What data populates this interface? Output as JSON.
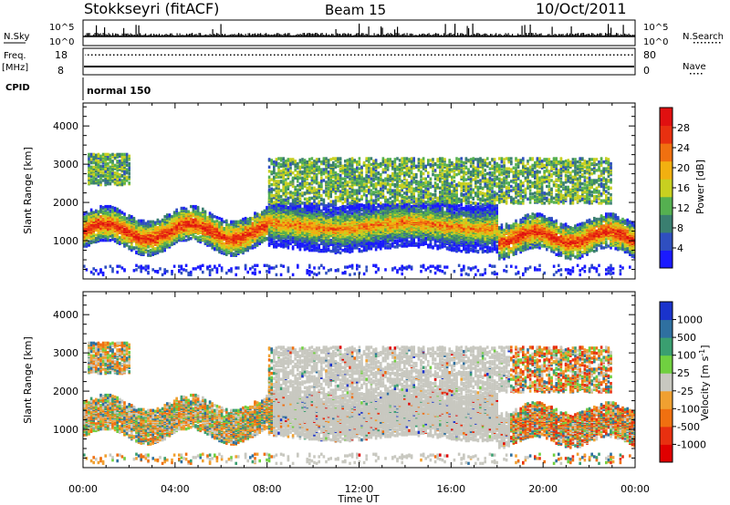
{
  "header": {
    "station": "Stokkseyri (fitACF)",
    "beam": "Beam 15",
    "date": "10/Oct/2011"
  },
  "strips": {
    "nsky": {
      "label": "N.Sky",
      "top_tick": "10^5",
      "bottom_tick": "10^0"
    },
    "nsearch": {
      "label": "N.Search",
      "top_tick": "10^5",
      "bottom_tick": "10^0"
    },
    "freq": {
      "label_line1": "Freq.",
      "label_line2": "[MHz]",
      "top_tick": "18",
      "bottom_tick": "8"
    },
    "nave": {
      "label": "Nave",
      "top_tick": "80",
      "bottom_tick": "0"
    },
    "cpid": {
      "label": "CPID",
      "value": "normal 150"
    }
  },
  "chart_data": [
    {
      "type": "heatmap",
      "name": "power",
      "ylabel": "Slant Range [km]",
      "ylim": [
        0,
        4600
      ],
      "yticks": [
        "1000",
        "2000",
        "3000",
        "4000"
      ],
      "xlim": [
        0,
        24
      ],
      "colorbar": {
        "label": "Power [dB]",
        "ticks": [
          "4",
          "8",
          "12",
          "16",
          "20",
          "24",
          "28"
        ],
        "range": [
          0,
          32
        ],
        "colors": [
          "#1a1aff",
          "#2f4fc0",
          "#3a7f70",
          "#55b050",
          "#c8d020",
          "#f2b010",
          "#f07010",
          "#e83010",
          "#e01010"
        ]
      }
    },
    {
      "type": "heatmap",
      "name": "velocity",
      "ylabel": "Slant Range [km]",
      "ylim": [
        0,
        4600
      ],
      "yticks": [
        "1000",
        "2000",
        "3000",
        "4000"
      ],
      "xlim": [
        0,
        24
      ],
      "xlabel": "Time UT",
      "xticks": [
        "00:00",
        "04:00",
        "08:00",
        "12:00",
        "16:00",
        "20:00",
        "00:00"
      ],
      "colorbar": {
        "label": "Velocity [m s",
        "label_sup": "-1",
        "label_end": "]",
        "ticks": [
          "1000",
          "500",
          "100",
          "25",
          "-25",
          "-100",
          "-500",
          "-1000"
        ],
        "colors": [
          "#1a33cc",
          "#2f70a0",
          "#3a9f70",
          "#70d040",
          "#c8c8c0",
          "#f0a030",
          "#f07010",
          "#e83010",
          "#e00000"
        ]
      }
    }
  ]
}
